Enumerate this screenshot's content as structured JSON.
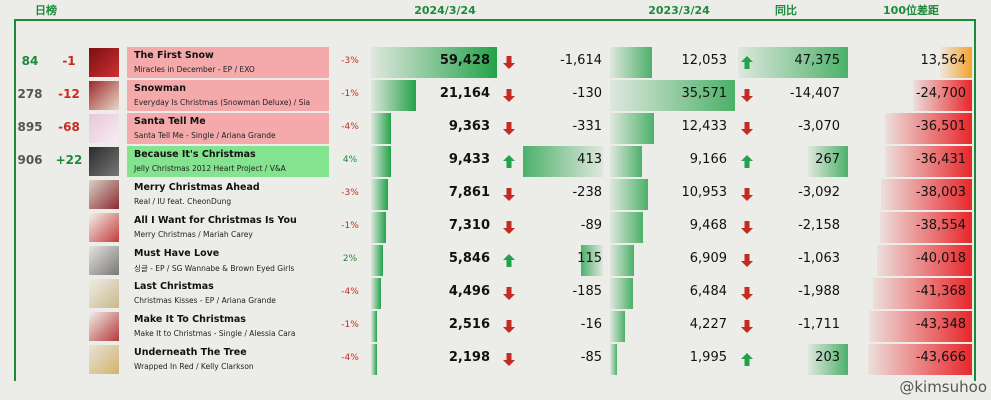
{
  "header": {
    "ranking": "日榜",
    "date_current": "2024/3/24",
    "date_previous": "2023/3/24",
    "yoy": "同比",
    "gap": "100位差距"
  },
  "watermark": "@kimsuhoo",
  "colors": {
    "green_text": "#1d8a3b",
    "red_text": "#c42b22",
    "bar_green": "#24a24a",
    "bar_red": "#e8262a",
    "bar_orange": "#f3a22c",
    "title_red": "#f4aaaa",
    "title_green": "#83e38e"
  },
  "chart_data": {
    "type": "table",
    "columns": [
      "rank",
      "rank_change",
      "title",
      "album_artist",
      "change_percent",
      "streams_2024_3_24",
      "daily_change",
      "streams_2023_3_24",
      "yoy",
      "gap_to_100"
    ],
    "rows": [
      {
        "rank": "84",
        "rank_change": "-1",
        "title": "The First Snow",
        "subtitle": "Miracles in December - EP / EXO",
        "pct": "-3%",
        "streams_2024": 59428,
        "daily_change": -1614,
        "streams_2023": 12053,
        "yoy": 47375,
        "gap": 13564,
        "title_tint": "red",
        "art": "red-tree-icon"
      },
      {
        "rank": "278",
        "rank_change": "-12",
        "title": "Snowman",
        "subtitle": "Everyday Is Christmas (Snowman Deluxe) / Sia",
        "pct": "-1%",
        "streams_2024": 21164,
        "daily_change": -130,
        "streams_2023": 35571,
        "yoy": -14407,
        "gap": -24700,
        "title_tint": "red",
        "art": "wreath-icon"
      },
      {
        "rank": "895",
        "rank_change": "-68",
        "title": "Santa Tell Me",
        "subtitle": "Santa Tell Me - Single / Ariana Grande",
        "pct": "-4%",
        "streams_2024": 9363,
        "daily_change": -331,
        "streams_2023": 12433,
        "yoy": -3070,
        "gap": -36501,
        "title_tint": "red",
        "art": "pink-cover-icon"
      },
      {
        "rank": "906",
        "rank_change": "+22",
        "title": "Because It's Christmas",
        "subtitle": "Jelly Christmas 2012 Heart Project  / V&A",
        "pct": "4%",
        "streams_2024": 9433,
        "daily_change": 413,
        "streams_2023": 9166,
        "yoy": 267,
        "gap": -36431,
        "title_tint": "green",
        "art": "dark-group-icon"
      },
      {
        "rank": "",
        "rank_change": "",
        "title": "Merry Christmas Ahead",
        "subtitle": "Real / IU feat. CheonDung",
        "pct": "-3%",
        "streams_2024": 7861,
        "daily_change": -238,
        "streams_2023": 10953,
        "yoy": -3092,
        "gap": -38003,
        "title_tint": "none",
        "art": "portrait-icon"
      },
      {
        "rank": "",
        "rank_change": "",
        "title": "All I Want for Christmas Is You",
        "subtitle": "Merry Christmas / Mariah Carey",
        "pct": "-1%",
        "streams_2024": 7310,
        "daily_change": -89,
        "streams_2023": 9468,
        "yoy": -2158,
        "gap": -38554,
        "title_tint": "none",
        "art": "white-cover-icon"
      },
      {
        "rank": "",
        "rank_change": "",
        "title": "Must Have Love",
        "subtitle": "싱글 - EP / SG Wannabe & Brown Eyed Girls",
        "pct": "2%",
        "streams_2024": 5846,
        "daily_change": 115,
        "streams_2023": 6909,
        "yoy": -1063,
        "gap": -40018,
        "title_tint": "none",
        "art": "group-cover-icon"
      },
      {
        "rank": "",
        "rank_change": "",
        "title": "Last Christmas",
        "subtitle": "Christmas Kisses - EP / Ariana Grande",
        "pct": "-4%",
        "streams_2024": 4496,
        "daily_change": -185,
        "streams_2023": 6484,
        "yoy": -1988,
        "gap": -41368,
        "title_tint": "none",
        "art": "ornaments-icon"
      },
      {
        "rank": "",
        "rank_change": "",
        "title": "Make It To Christmas",
        "subtitle": "Make It to Christmas - Single / Alessia Cara",
        "pct": "-1%",
        "streams_2024": 2516,
        "daily_change": -16,
        "streams_2023": 4227,
        "yoy": -1711,
        "gap": -43348,
        "title_tint": "none",
        "art": "gift-cover-icon"
      },
      {
        "rank": "",
        "rank_change": "",
        "title": "Underneath The Tree",
        "subtitle": "Wrapped In Red / Kelly Clarkson",
        "pct": "-4%",
        "streams_2024": 2198,
        "daily_change": -85,
        "streams_2023": 1995,
        "yoy": 203,
        "gap": -43666,
        "title_tint": "none",
        "art": "blonde-portrait-icon"
      }
    ]
  }
}
